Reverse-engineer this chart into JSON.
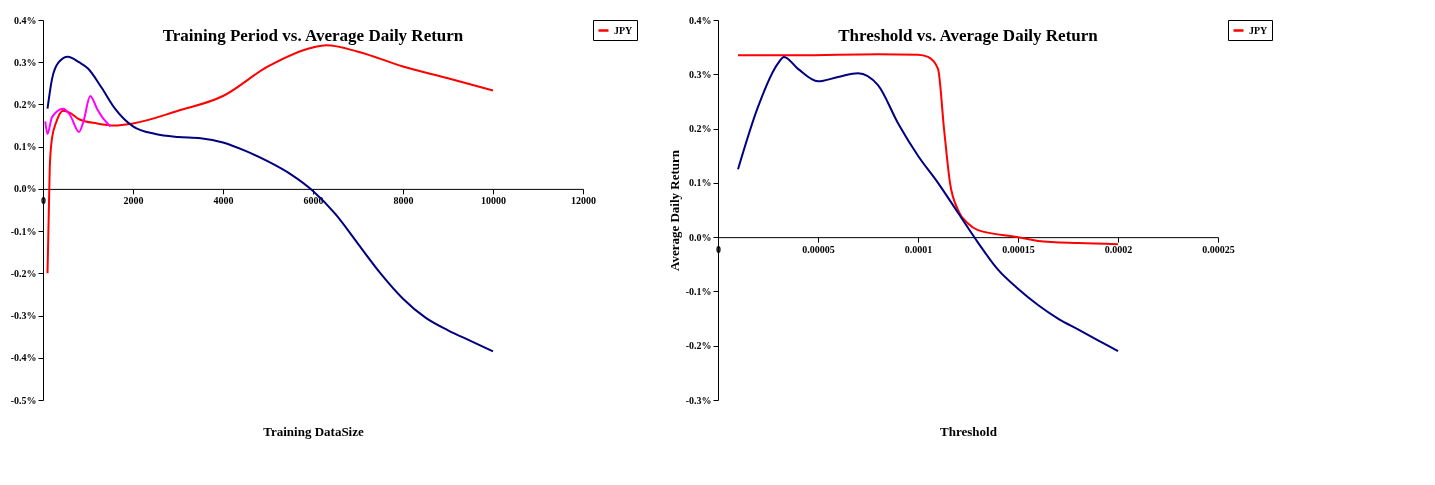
{
  "chart_data": [
    {
      "type": "line",
      "title": "Training Period vs. Average Daily Return",
      "xlabel": "Training DataSize",
      "xlim": [
        0,
        12000
      ],
      "xticks": [
        0,
        2000,
        4000,
        6000,
        8000,
        10000,
        12000
      ],
      "ylim": [
        -0.5,
        0.4
      ],
      "yticks": [
        {
          "value": -0.5,
          "label": "-0.5%"
        },
        {
          "value": -0.4,
          "label": "-0.4%"
        },
        {
          "value": -0.3,
          "label": "-0.3%"
        },
        {
          "value": -0.2,
          "label": "-0.2%"
        },
        {
          "value": -0.1,
          "label": "-0.1%"
        },
        {
          "value": 0,
          "label": "0.0%"
        },
        {
          "value": 0.1,
          "label": "0.1%"
        },
        {
          "value": 0.2,
          "label": "0.2%"
        },
        {
          "value": 0.3,
          "label": "0.3%"
        },
        {
          "value": 0.4,
          "label": "0.4%"
        }
      ],
      "grid": false,
      "legend": "right",
      "series": [
        {
          "name": "JPY",
          "color": "#ff0000",
          "x": [
            100,
            150,
            200,
            300,
            450,
            600,
            800,
            1200,
            1600,
            2000,
            3000,
            4000,
            5000,
            6000,
            6300,
            7000,
            8000,
            9000,
            10000
          ],
          "values": [
            -0.2,
            0.05,
            0.12,
            0.16,
            0.185,
            0.18,
            0.165,
            0.155,
            0.15,
            0.155,
            0.185,
            0.22,
            0.29,
            0.335,
            0.34,
            0.325,
            0.29,
            0.262,
            0.233
          ]
        },
        {
          "color": "#000080",
          "x": [
            100,
            200,
            350,
            550,
            800,
            1000,
            1300,
            1600,
            2000,
            2500,
            3000,
            3500,
            4000,
            4500,
            5000,
            5500,
            6000,
            6500,
            7000,
            7500,
            8000,
            8500,
            9000,
            9500,
            10000
          ],
          "values": [
            0.19,
            0.26,
            0.3,
            0.313,
            0.3,
            0.285,
            0.24,
            0.19,
            0.148,
            0.13,
            0.123,
            0.12,
            0.11,
            0.09,
            0.065,
            0.035,
            -0.005,
            -0.06,
            -0.13,
            -0.2,
            -0.26,
            -0.305,
            -0.335,
            -0.36,
            -0.385
          ]
        },
        {
          "color": "#ff00ff",
          "x": [
            50,
            100,
            200,
            450,
            600,
            800,
            900,
            1050,
            1200,
            1350,
            1500
          ],
          "values": [
            0.16,
            0.13,
            0.17,
            0.19,
            0.175,
            0.135,
            0.16,
            0.22,
            0.19,
            0.165,
            0.148
          ]
        }
      ]
    },
    {
      "type": "line",
      "title": "Threshold vs. Average Daily Return",
      "xlabel": "Threshold",
      "ylabel": "Average Daily Return",
      "xlim": [
        0,
        0.00025
      ],
      "xticks": [
        0,
        {
          "value": 5e-05,
          "label": "0.00005"
        },
        0.0001,
        0.00015,
        0.0002,
        0.00025
      ],
      "ylim": [
        -0.3,
        0.4
      ],
      "yticks": [
        {
          "value": -0.3,
          "label": "-0.3%"
        },
        {
          "value": -0.2,
          "label": "-0.2%"
        },
        {
          "value": -0.1,
          "label": "-0.1%"
        },
        {
          "value": 0,
          "label": "0.0%"
        },
        {
          "value": 0.1,
          "label": "0.1%"
        },
        {
          "value": 0.2,
          "label": "0.2%"
        },
        {
          "value": 0.3,
          "label": "0.3%"
        },
        {
          "value": 0.4,
          "label": "0.4%"
        }
      ],
      "grid": false,
      "legend": "right",
      "series": [
        {
          "name": "JPY",
          "color": "#ff0000",
          "x": [
            1e-05,
            4e-05,
            8e-05,
            0.0001,
            0.000105,
            0.00011,
            0.000113,
            0.000116,
            0.00012,
            0.000125,
            0.00013,
            0.00015,
            0.00016,
            0.00018,
            0.0002
          ],
          "values": [
            0.335,
            0.335,
            0.337,
            0.336,
            0.332,
            0.31,
            0.2,
            0.1,
            0.05,
            0.025,
            0.013,
            0,
            -0.007,
            -0.011,
            -0.013
          ]
        },
        {
          "color": "#000080",
          "x": [
            1e-05,
            2e-05,
            3e-05,
            3.3e-05,
            4e-05,
            5e-05,
            6e-05,
            7e-05,
            8e-05,
            9e-05,
            0.0001,
            0.00011,
            0.00012,
            0.00013,
            0.00014,
            0.00015,
            0.00016,
            0.00017,
            0.00018,
            0.00019,
            0.0002
          ],
          "values": [
            0.125,
            0.24,
            0.32,
            0.332,
            0.31,
            0.287,
            0.295,
            0.302,
            0.28,
            0.21,
            0.15,
            0.1,
            0.045,
            -0.01,
            -0.06,
            -0.095,
            -0.125,
            -0.15,
            -0.17,
            -0.19,
            -0.21
          ]
        }
      ]
    }
  ]
}
